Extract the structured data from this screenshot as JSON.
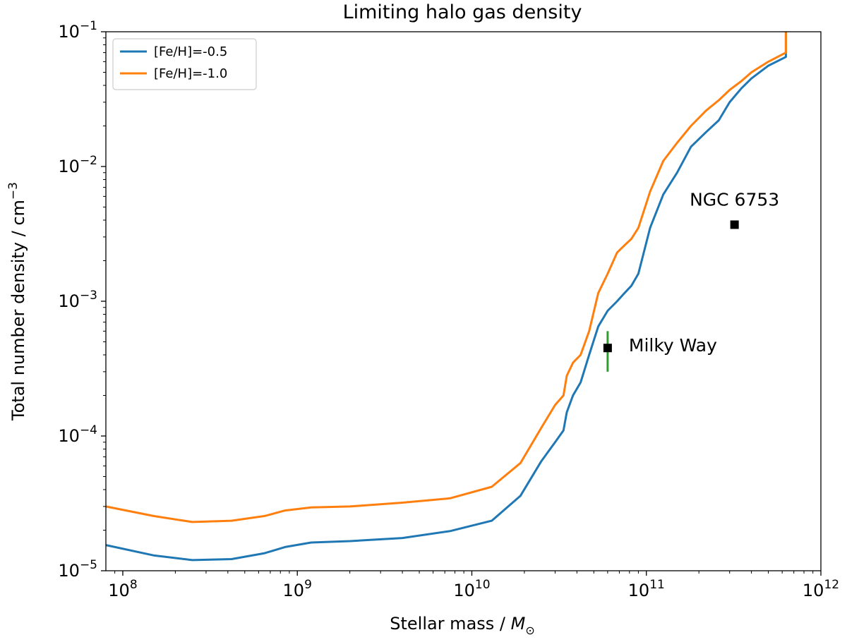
{
  "chart_data": {
    "type": "line",
    "title": "Limiting halo gas density",
    "xlabel": "Stellar mass / M_⊙",
    "ylabel": "Total number density / cm^-3",
    "x_scale": "log",
    "y_scale": "log",
    "xlim": [
      80000000.0,
      1000000000000.0
    ],
    "ylim": [
      1e-05,
      0.1
    ],
    "grid": false,
    "legend_position": "top-left",
    "x_ticks": [
      {
        "value": 100000000.0,
        "base": "10",
        "exp": "8"
      },
      {
        "value": 1000000000.0,
        "base": "10",
        "exp": "9"
      },
      {
        "value": 10000000000.0,
        "base": "10",
        "exp": "10"
      },
      {
        "value": 100000000000.0,
        "base": "10",
        "exp": "11"
      },
      {
        "value": 1000000000000.0,
        "base": "10",
        "exp": "12"
      }
    ],
    "y_ticks": [
      {
        "value": 1e-05,
        "base": "10",
        "exp": "−5"
      },
      {
        "value": 0.0001,
        "base": "10",
        "exp": "−4"
      },
      {
        "value": 0.001,
        "base": "10",
        "exp": "−3"
      },
      {
        "value": 0.01,
        "base": "10",
        "exp": "−2"
      },
      {
        "value": 0.1,
        "base": "10",
        "exp": "−1"
      }
    ],
    "series": [
      {
        "name": "[Fe/H]=-0.5",
        "color": "#1f77b4",
        "x": [
          80000000.0,
          150000000.0,
          250000000.0,
          420000000.0,
          650000000.0,
          850000000.0,
          1200000000.0,
          2000000000.0,
          4000000000.0,
          7500000000.0,
          13000000000.0,
          19000000000.0,
          25000000000.0,
          30000000000.0,
          33500000000.0,
          35000000000.0,
          38000000000.0,
          42000000000.0,
          47000000000.0,
          53000000000.0,
          60000000000.0,
          68000000000.0,
          75000000000.0,
          82000000000.0,
          90000000000.0,
          105000000000.0,
          125000000000.0,
          150000000000.0,
          180000000000.0,
          220000000000.0,
          260000000000.0,
          300000000000.0,
          350000000000.0,
          400000000000.0,
          500000000000.0,
          630000000000.0,
          630000000000.0
        ],
        "y": [
          1.55e-05,
          1.3e-05,
          1.2e-05,
          1.22e-05,
          1.35e-05,
          1.5e-05,
          1.62e-05,
          1.66e-05,
          1.75e-05,
          1.97e-05,
          2.35e-05,
          3.6e-05,
          6.5e-05,
          9e-05,
          0.00011,
          0.00015,
          0.0002,
          0.00025,
          0.0004,
          0.00065,
          0.00085,
          0.001,
          0.00115,
          0.0013,
          0.0016,
          0.0035,
          0.0062,
          0.009,
          0.014,
          0.018,
          0.022,
          0.03,
          0.038,
          0.045,
          0.056,
          0.065,
          0.1
        ]
      },
      {
        "name": "[Fe/H]=-1.0",
        "color": "#ff7f0e",
        "x": [
          80000000.0,
          150000000.0,
          250000000.0,
          420000000.0,
          650000000.0,
          850000000.0,
          1200000000.0,
          2000000000.0,
          4000000000.0,
          7500000000.0,
          13000000000.0,
          19000000000.0,
          25000000000.0,
          30000000000.0,
          33500000000.0,
          35000000000.0,
          38000000000.0,
          42000000000.0,
          47000000000.0,
          53000000000.0,
          60000000000.0,
          68000000000.0,
          75000000000.0,
          82000000000.0,
          90000000000.0,
          105000000000.0,
          125000000000.0,
          150000000000.0,
          180000000000.0,
          220000000000.0,
          260000000000.0,
          300000000000.0,
          350000000000.0,
          400000000000.0,
          500000000000.0,
          630000000000.0,
          630000000000.0
        ],
        "y": [
          3e-05,
          2.55e-05,
          2.3e-05,
          2.35e-05,
          2.55e-05,
          2.8e-05,
          2.95e-05,
          3e-05,
          3.2e-05,
          3.45e-05,
          4.2e-05,
          6.3e-05,
          0.000115,
          0.00017,
          0.0002,
          0.00028,
          0.00035,
          0.0004,
          0.0006,
          0.00115,
          0.0016,
          0.0023,
          0.0026,
          0.0029,
          0.0035,
          0.0065,
          0.011,
          0.015,
          0.02,
          0.026,
          0.031,
          0.037,
          0.043,
          0.05,
          0.06,
          0.07,
          0.1
        ]
      }
    ],
    "points": [
      {
        "label": "Milky Way",
        "x": 60000000000.0,
        "y": 0.00045,
        "yerr": [
          0.0003,
          0.0006
        ],
        "marker_color": "#000000",
        "error_color": "#2ca02c"
      },
      {
        "label": "NGC 6753",
        "x": 320000000000.0,
        "y": 0.0037,
        "marker_color": "#000000"
      }
    ]
  }
}
